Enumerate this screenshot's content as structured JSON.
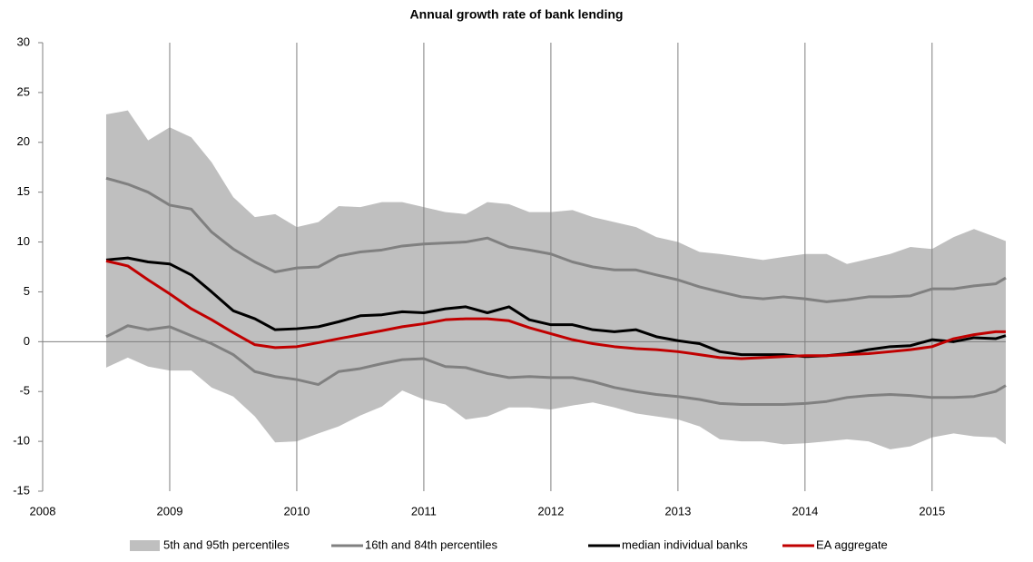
{
  "chart_data": {
    "type": "line",
    "title": "Annual growth rate of bank lending",
    "x": [
      2008.5,
      2008.67,
      2008.83,
      2009,
      2009.17,
      2009.33,
      2009.5,
      2009.67,
      2009.83,
      2010,
      2010.17,
      2010.33,
      2010.5,
      2010.67,
      2010.83,
      2011,
      2011.17,
      2011.33,
      2011.5,
      2011.67,
      2011.83,
      2012,
      2012.17,
      2012.33,
      2012.5,
      2012.67,
      2012.83,
      2013,
      2013.17,
      2013.33,
      2013.5,
      2013.67,
      2013.83,
      2014,
      2014.17,
      2014.33,
      2014.5,
      2014.67,
      2014.83,
      2015,
      2015.17,
      2015.33,
      2015.5,
      2015.58
    ],
    "series": [
      {
        "name": "5th and 95th percentiles",
        "style": "area",
        "color": "#bfbfbf",
        "values": [
          22.8,
          23.2,
          20.2,
          21.5,
          20.5,
          18.0,
          14.5,
          12.5,
          12.8,
          11.5,
          12.0,
          13.6,
          13.5,
          14.0,
          14.0,
          13.5,
          13.0,
          12.8,
          14.0,
          13.8,
          13.0,
          13.0,
          13.2,
          12.5,
          12.0,
          11.5,
          10.5,
          10.0,
          9.0,
          8.8,
          8.5,
          8.2,
          8.5,
          8.8,
          8.8,
          7.8,
          8.3,
          8.8,
          9.5,
          9.3,
          10.5,
          11.3,
          10.5,
          10.1
        ],
        "lower": [
          -2.6,
          -1.6,
          -2.5,
          -2.9,
          -2.9,
          -4.6,
          -5.5,
          -7.5,
          -10.1,
          -10.0,
          -9.2,
          -8.5,
          -7.4,
          -6.5,
          -4.9,
          -5.8,
          -6.3,
          -7.8,
          -7.5,
          -6.6,
          -6.6,
          -6.8,
          -6.4,
          -6.1,
          -6.6,
          -7.2,
          -7.5,
          -7.8,
          -8.5,
          -9.8,
          -10.0,
          -10.0,
          -10.3,
          -10.2,
          -10.0,
          -9.8,
          -10.0,
          -10.8,
          -10.5,
          -9.6,
          -9.2,
          -9.5,
          -9.6,
          -10.3
        ]
      },
      {
        "name": "16th and 84th percentiles",
        "style": "line",
        "color": "#808080",
        "values": [
          16.4,
          15.8,
          15.0,
          13.7,
          13.3,
          11.0,
          9.3,
          8.0,
          7.0,
          7.4,
          7.5,
          8.6,
          9.0,
          9.2,
          9.6,
          9.8,
          9.9,
          10.0,
          10.4,
          9.5,
          9.2,
          8.8,
          8.0,
          7.5,
          7.2,
          7.2,
          6.7,
          6.2,
          5.5,
          5.0,
          4.5,
          4.3,
          4.5,
          4.3,
          4.0,
          4.2,
          4.5,
          4.5,
          4.6,
          5.3,
          5.3,
          5.6,
          5.8,
          6.4
        ],
        "lower": [
          0.5,
          1.6,
          1.2,
          1.5,
          0.6,
          -0.2,
          -1.3,
          -3.0,
          -3.5,
          -3.8,
          -4.3,
          -3.0,
          -2.7,
          -2.2,
          -1.8,
          -1.7,
          -2.5,
          -2.6,
          -3.2,
          -3.6,
          -3.5,
          -3.6,
          -3.6,
          -4.0,
          -4.6,
          -5.0,
          -5.3,
          -5.5,
          -5.8,
          -6.2,
          -6.3,
          -6.3,
          -6.3,
          -6.2,
          -6.0,
          -5.6,
          -5.4,
          -5.3,
          -5.4,
          -5.6,
          -5.6,
          -5.5,
          -5.0,
          -4.4
        ]
      },
      {
        "name": "median individual banks",
        "style": "line",
        "color": "#000000",
        "values": [
          8.2,
          8.4,
          8.0,
          7.8,
          6.7,
          5.0,
          3.1,
          2.3,
          1.2,
          1.3,
          1.5,
          2.0,
          2.6,
          2.7,
          3.0,
          2.9,
          3.3,
          3.5,
          2.9,
          3.5,
          2.2,
          1.7,
          1.7,
          1.2,
          1.0,
          1.2,
          0.5,
          0.1,
          -0.2,
          -1.0,
          -1.3,
          -1.3,
          -1.3,
          -1.5,
          -1.4,
          -1.2,
          -0.8,
          -0.5,
          -0.4,
          0.2,
          0.0,
          0.4,
          0.3,
          0.6
        ]
      },
      {
        "name": "EA aggregate",
        "style": "line",
        "color": "#c00000",
        "values": [
          8.1,
          7.6,
          6.2,
          4.8,
          3.3,
          2.2,
          0.9,
          -0.3,
          -0.6,
          -0.5,
          -0.1,
          0.3,
          0.7,
          1.1,
          1.5,
          1.8,
          2.2,
          2.3,
          2.3,
          2.1,
          1.4,
          0.8,
          0.2,
          -0.2,
          -0.5,
          -0.7,
          -0.8,
          -1.0,
          -1.3,
          -1.6,
          -1.7,
          -1.6,
          -1.5,
          -1.4,
          -1.4,
          -1.3,
          -1.2,
          -1.0,
          -0.8,
          -0.5,
          0.3,
          0.7,
          1.0,
          1.0
        ]
      }
    ],
    "xlim": [
      2008,
      2015.58
    ],
    "xticks": [
      2008,
      2009,
      2010,
      2011,
      2012,
      2013,
      2014,
      2015
    ],
    "ylim": [
      -15,
      30
    ],
    "yticks": [
      -15,
      -10,
      -5,
      0,
      5,
      10,
      15,
      20,
      25,
      30
    ],
    "grid": "x",
    "legend": "bottom"
  }
}
